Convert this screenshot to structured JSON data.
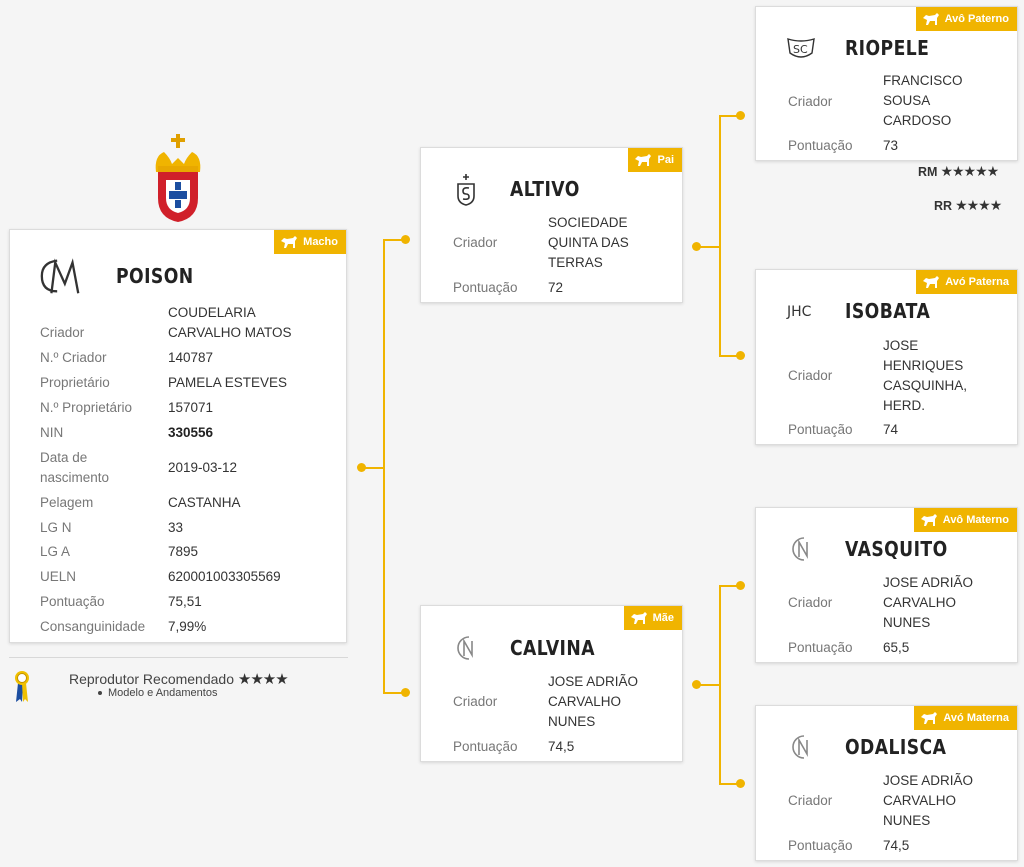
{
  "main": {
    "name": "POISON",
    "badge": "Macho",
    "rows": [
      {
        "label": "Criador",
        "value": "COUDELARIA CARVALHO MATOS"
      },
      {
        "label": "N.º Criador",
        "value": "140787"
      },
      {
        "label": "Proprietário",
        "value": "PAMELA ESTEVES"
      },
      {
        "label": "N.º Proprietário",
        "value": "157071"
      },
      {
        "label": "NIN",
        "value": "330556"
      },
      {
        "label": "Data de nascimento",
        "value": "2019-03-12"
      },
      {
        "label": "Pelagem",
        "value": "CASTANHA"
      },
      {
        "label": "LG N",
        "value": "33"
      },
      {
        "label": "LG A",
        "value": "7895"
      },
      {
        "label": "UELN",
        "value": "620001003305569"
      },
      {
        "label": "Pontuação",
        "value": "75,51"
      },
      {
        "label": "Consanguinidade",
        "value": "7,99%"
      }
    ],
    "recommendation": {
      "title": "Reprodutor Recomendado",
      "stars": "★★★★",
      "item": "Modelo e Andamentos"
    }
  },
  "pai": {
    "name": "ALTIVO",
    "badge": "Pai",
    "criador_label": "Criador",
    "criador": "SOCIEDADE QUINTA DAS TERRAS",
    "pontuacao_label": "Pontuação",
    "pontuacao": "72"
  },
  "mae": {
    "name": "CALVINA",
    "badge": "Mãe",
    "criador_label": "Criador",
    "criador": "JOSE ADRIÃO CARVALHO NUNES",
    "pontuacao_label": "Pontuação",
    "pontuacao": "74,5"
  },
  "avo_paterno": {
    "name": "RIOPELE",
    "badge": "Avô Paterno",
    "criador_label": "Criador",
    "criador": "FRANCISCO SOUSA CARDOSO",
    "pontuacao_label": "Pontuação",
    "pontuacao": "73",
    "ratings": [
      {
        "label": "RM",
        "stars": "★★★★★"
      },
      {
        "label": "RR",
        "stars": "★★★★"
      }
    ]
  },
  "avo_paterna": {
    "name": "ISOBATA",
    "badge": "Avó Paterna",
    "criador_label": "Criador",
    "criador": "JOSE HENRIQUES CASQUINHA, HERD.",
    "pontuacao_label": "Pontuação",
    "pontuacao": "74"
  },
  "avo_materno": {
    "name": "VASQUITO",
    "badge": "Avô Materno",
    "criador_label": "Criador",
    "criador": "JOSE ADRIÃO CARVALHO NUNES",
    "pontuacao_label": "Pontuação",
    "pontuacao": "65,5"
  },
  "avo_materna": {
    "name": "ODALISCA",
    "badge": "Avó Materna",
    "criador_label": "Criador",
    "criador": "JOSE ADRIÃO CARVALHO NUNES",
    "pontuacao_label": "Pontuação",
    "pontuacao": "74,5"
  },
  "colors": {
    "accent": "#f0b400",
    "shield_red": "#d0202a",
    "shield_blue": "#1c4ea0"
  },
  "icons": {
    "badge": "horse-icon",
    "crest": "apsl-crest-icon",
    "ribbon": "award-ribbon-icon"
  }
}
